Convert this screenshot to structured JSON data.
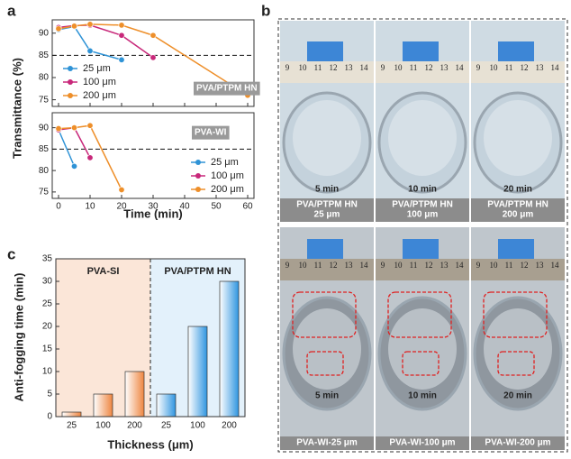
{
  "panel_labels": [
    "a",
    "b",
    "c"
  ],
  "chart_data": [
    {
      "type": "line",
      "ylabel": "Transmittance (%)",
      "xlim": [
        -2,
        62
      ],
      "xticks": [
        0,
        10,
        20,
        30,
        40,
        50,
        60
      ],
      "xticklabels": false,
      "ylim": [
        73.5,
        93
      ],
      "yticks": [
        75,
        80,
        85,
        90
      ],
      "hline": 85,
      "annotation": "PVA/PTPM HN",
      "legend": "lower left",
      "series": [
        {
          "name": "25 μm",
          "color": "#2f93d6",
          "x": [
            0,
            5,
            10,
            20
          ],
          "values": [
            90.8,
            91.5,
            86,
            84
          ]
        },
        {
          "name": "100 μm",
          "color": "#c8287a",
          "x": [
            0,
            5,
            10,
            20,
            30
          ],
          "values": [
            91.3,
            91.7,
            91.8,
            89.5,
            84.5
          ]
        },
        {
          "name": "200 μm",
          "color": "#ee8f2a",
          "x": [
            0,
            5,
            10,
            20,
            30,
            60
          ],
          "values": [
            91,
            91.6,
            92,
            91.8,
            89.5,
            76
          ]
        }
      ]
    },
    {
      "type": "line",
      "xlabel": "Time (min)",
      "xlim": [
        -2,
        62
      ],
      "xticks": [
        0,
        10,
        20,
        30,
        40,
        50,
        60
      ],
      "xticklabels": true,
      "ylim": [
        73.5,
        93.5
      ],
      "yticks": [
        75,
        80,
        85,
        90
      ],
      "hline": 85,
      "annotation": "PVA-WI",
      "legend": "lower right",
      "series": [
        {
          "name": "25 μm",
          "color": "#2f93d6",
          "x": [
            0,
            5
          ],
          "values": [
            89.5,
            81
          ]
        },
        {
          "name": "100 μm",
          "color": "#c8287a",
          "x": [
            0,
            5,
            10
          ],
          "values": [
            89.5,
            90,
            83
          ]
        },
        {
          "name": "200 μm",
          "color": "#ee8f2a",
          "x": [
            0,
            5,
            10,
            20
          ],
          "values": [
            89.8,
            90,
            90.5,
            75.5
          ]
        }
      ]
    },
    {
      "type": "bar",
      "ylabel": "Anti-fogging time (min)",
      "xlabel": "Thickness (μm)",
      "ylim": [
        0,
        35
      ],
      "yticks": [
        0,
        5,
        10,
        15,
        20,
        25,
        30,
        35
      ],
      "groups": [
        {
          "name": "PVA-SI",
          "background": "#fbe6d8",
          "color": "#ee8540",
          "categories": [
            "25",
            "100",
            "200"
          ],
          "values": [
            1,
            5,
            10
          ]
        },
        {
          "name": "PVA/PTPM HN",
          "background": "#e3f1fb",
          "color": "#2f95e0",
          "categories": [
            "25",
            "100",
            "200"
          ],
          "values": [
            5,
            20,
            30
          ]
        }
      ]
    }
  ],
  "photos": {
    "ruler_labels": [
      "9",
      "10",
      "11",
      "12",
      "13",
      "14"
    ],
    "cells": [
      {
        "time": "5 min",
        "caption": [
          "PVA/PTPM HN",
          "25 μm"
        ]
      },
      {
        "time": "10 min",
        "caption": [
          "PVA/PTPM HN",
          "100 μm"
        ]
      },
      {
        "time": "20 min",
        "caption": [
          "PVA/PTPM HN",
          "200 μm"
        ]
      },
      {
        "time": "5 min",
        "caption": [
          "PVA-WI-25 μm"
        ]
      },
      {
        "time": "10 min",
        "caption": [
          "PVA-WI-100 μm"
        ]
      },
      {
        "time": "20 min",
        "caption": [
          "PVA-WI-200 μm"
        ]
      }
    ]
  }
}
